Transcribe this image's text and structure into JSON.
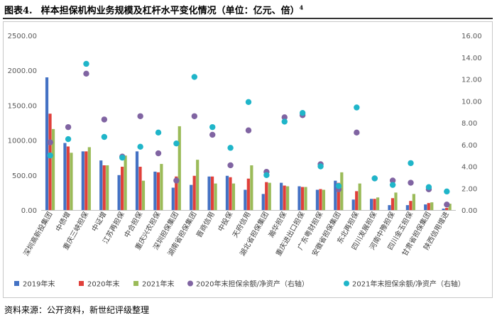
{
  "header": {
    "figure_label": "图表4.",
    "title": "样本担保机构业务规模及杠杆水平变化情况（单位：亿元、倍）",
    "footnote_mark": "4"
  },
  "source_note": "资料来源：公开资料，新世纪评级整理",
  "colors": {
    "y2019": "#4472C4",
    "y2020": "#E0403B",
    "y2021": "#9BBB59",
    "lev2020": "#8064A2",
    "lev2021": "#1FB5C9",
    "axis": "#bfbfbf"
  },
  "chart_data": {
    "type": "bar",
    "title": "样本担保机构业务规模及杠杆水平变化情况（单位：亿元、倍）",
    "categories": [
      "深圳高新投集团",
      "中债增",
      "重庆三峡担保",
      "中证增",
      "江苏再担保",
      "中合担保",
      "重庆兴农担保",
      "深圳担保集团",
      "湖南省担保集团",
      "晋商信用",
      "中投保",
      "天府信用",
      "湖北省担保集团",
      "瀚华担保",
      "重庆进出口担保",
      "广东粤财担保",
      "安徽省担保集团",
      "东北再担保",
      "四川发展担保",
      "河南中豫担保",
      "四川金玉担保",
      "甘肃省担保集团",
      "陕西信用增进"
    ],
    "ylim": [
      0,
      2500
    ],
    "y2lim": [
      0,
      16
    ],
    "left_ticks": [
      "0.00",
      "500.00",
      "1000.00",
      "1500.00",
      "2000.00",
      "2500.00"
    ],
    "right_ticks": [
      "0.00",
      "2.00",
      "4.00",
      "6.00",
      "8.00",
      "10.00",
      "12.00",
      "14.00",
      "16.00"
    ],
    "series": [
      {
        "name": "2019年末",
        "kind": "bar",
        "axis": "left",
        "values": [
          1900,
          960,
          840,
          710,
          500,
          840,
          550,
          320,
          360,
          480,
          490,
          290,
          230,
          390,
          340,
          290,
          420,
          150,
          160,
          70,
          70,
          80,
          20
        ]
      },
      {
        "name": "2020年末",
        "kind": "bar",
        "axis": "left",
        "values": [
          1380,
          910,
          840,
          640,
          620,
          620,
          540,
          480,
          490,
          480,
          470,
          450,
          400,
          350,
          330,
          300,
          390,
          270,
          160,
          170,
          130,
          100,
          30
        ]
      },
      {
        "name": "2021年末",
        "kind": "bar",
        "axis": "left",
        "values": [
          1160,
          820,
          900,
          640,
          780,
          420,
          660,
          1200,
          720,
          380,
          380,
          640,
          390,
          340,
          330,
          290,
          540,
          380,
          180,
          250,
          230,
          110,
          90
        ]
      },
      {
        "name": "2020年末担保余额/净资产（右轴）",
        "kind": "scatter",
        "axis": "right",
        "values": [
          6.2,
          7.6,
          12.5,
          8.3,
          4.9,
          8.6,
          5.2,
          2.7,
          8.6,
          6.9,
          4.1,
          7.3,
          3.5,
          8.5,
          8.7,
          4.2,
          1.9,
          7.1,
          2.9,
          2.7,
          2.5,
          1.9,
          0.5
        ]
      },
      {
        "name": "2021年末担保余额/净资产（右轴）",
        "kind": "scatter",
        "axis": "right",
        "values": [
          5.0,
          6.5,
          13.4,
          6.7,
          4.8,
          5.8,
          7.1,
          6.1,
          12.2,
          7.6,
          5.7,
          9.9,
          3.2,
          8.1,
          8.9,
          4.0,
          2.2,
          9.4,
          2.9,
          2.3,
          4.3,
          2.1,
          1.7
        ]
      }
    ],
    "legend_position": "bottom",
    "grid": false
  }
}
